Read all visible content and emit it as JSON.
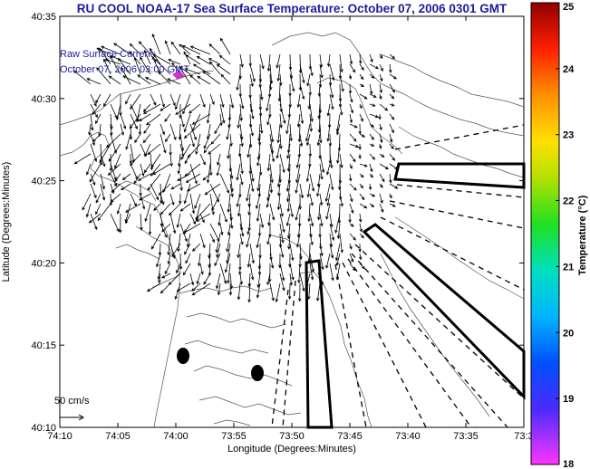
{
  "title": "RU COOL  NOAA-17  Sea Surface Temperature:  October 07, 2006 0301 GMT",
  "overlay": {
    "line1": "Raw Surface Current:",
    "line2": "October 07, 2006 03:00 GMT",
    "scale_label": "50 cm/s"
  },
  "axes": {
    "xlabel": "Longitude (Degrees:Minutes)",
    "ylabel": "Latitude (Degrees:Minutes)",
    "xticks": [
      "74:10",
      "74:05",
      "74:00",
      "73:55",
      "73:50",
      "73:45",
      "73:40",
      "73:35",
      "73:3"
    ],
    "yticks": [
      "40:35",
      "40:30",
      "40:25",
      "40:20",
      "40:15",
      "40:10"
    ]
  },
  "colorbar": {
    "label": "Temperature (°C)",
    "ticks": [
      "25",
      "24",
      "23",
      "22",
      "21",
      "20",
      "19",
      "18"
    ],
    "min": 18,
    "max": 25
  },
  "colors": {
    "title": "#1c1c9c",
    "overlay_text": "#1c1c9c",
    "marker": "#cc33cc"
  }
}
